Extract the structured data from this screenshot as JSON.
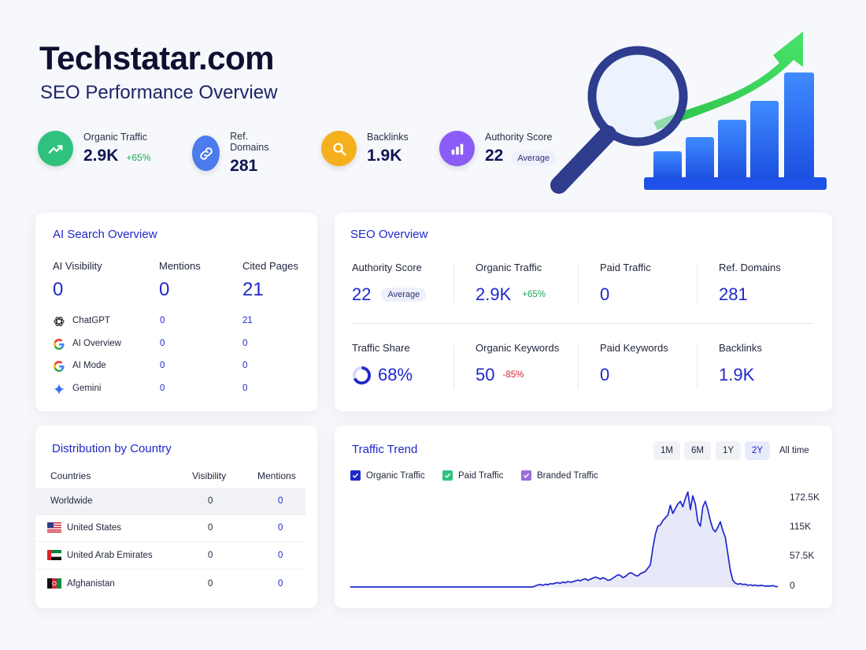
{
  "header": {
    "title": "Techstatar.com",
    "subtitle": "SEO Performance Overview"
  },
  "kpis": [
    {
      "label": "Organic Traffic",
      "value": "2.9K",
      "delta": "+65%",
      "icon": "trend-up-icon",
      "color": "#2ec27e"
    },
    {
      "label": "Ref. Domains",
      "value": "281",
      "icon": "link-icon",
      "color": "#4b7bec"
    },
    {
      "label": "Backlinks",
      "value": "1.9K",
      "icon": "search-icon",
      "color": "#f6b01e"
    },
    {
      "label": "Authority Score",
      "value": "22",
      "badge": "Average",
      "icon": "bar-chart-icon",
      "color": "#8b5cf6"
    }
  ],
  "ai_overview": {
    "title": "AI Search Overview",
    "columns": [
      {
        "label": "AI Visibility",
        "value": "0"
      },
      {
        "label": "Mentions",
        "value": "0"
      },
      {
        "label": "Cited Pages",
        "value": "21"
      }
    ],
    "engines": [
      {
        "name": "ChatGPT",
        "mentions": "0",
        "cited": "21",
        "icon": "chatgpt-icon"
      },
      {
        "name": "AI Overview",
        "mentions": "0",
        "cited": "0",
        "icon": "google-icon"
      },
      {
        "name": "AI Mode",
        "mentions": "0",
        "cited": "0",
        "icon": "google-icon"
      },
      {
        "name": "Gemini",
        "mentions": "0",
        "cited": "0",
        "icon": "gemini-icon"
      }
    ]
  },
  "seo_overview": {
    "title": "SEO Overview",
    "row1": [
      {
        "label": "Authority Score",
        "value": "22",
        "badge": "Average"
      },
      {
        "label": "Organic Traffic",
        "value": "2.9K",
        "delta": "+65%"
      },
      {
        "label": "Paid Traffic",
        "value": "0"
      },
      {
        "label": "Ref. Domains",
        "value": "281"
      }
    ],
    "row2": [
      {
        "label": "Traffic Share",
        "value": "68%",
        "share_fraction": 0.68
      },
      {
        "label": "Organic Keywords",
        "value": "50",
        "delta": "-85%"
      },
      {
        "label": "Paid Keywords",
        "value": "0"
      },
      {
        "label": "Backlinks",
        "value": "1.9K"
      }
    ]
  },
  "countries": {
    "title": "Distribution by Country",
    "headers": [
      "Countries",
      "Visibility",
      "Mentions"
    ],
    "rows": [
      {
        "name": "Worldwide",
        "visibility": "0",
        "mentions": "0",
        "flag": ""
      },
      {
        "name": "United States",
        "visibility": "0",
        "mentions": "0",
        "flag": "us-flag-icon"
      },
      {
        "name": "United Arab Emirates",
        "visibility": "0",
        "mentions": "0",
        "flag": "uae-flag-icon"
      },
      {
        "name": "Afghanistan",
        "visibility": "0",
        "mentions": "0",
        "flag": "af-flag-icon"
      }
    ]
  },
  "trend": {
    "title": "Traffic Trend",
    "ranges": [
      "1M",
      "6M",
      "1Y",
      "2Y",
      "All time"
    ],
    "active_range": "2Y",
    "legend": [
      {
        "label": "Organic Traffic",
        "color": "#1f28c9"
      },
      {
        "label": "Paid Traffic",
        "color": "#2ec27e"
      },
      {
        "label": "Branded Traffic",
        "color": "#9b6dd9"
      }
    ],
    "yticks": [
      "172.5K",
      "115K",
      "57.5K",
      "0"
    ]
  },
  "chart_data": {
    "type": "area",
    "title": "Traffic Trend",
    "ylim": [
      0,
      172500
    ],
    "series": [
      {
        "name": "Organic Traffic",
        "values": [
          0,
          0,
          0,
          0,
          0,
          0,
          0,
          0,
          0,
          0,
          0,
          0,
          0,
          0,
          0,
          0,
          0,
          0,
          0,
          0,
          0,
          0,
          0,
          0,
          0,
          0,
          0,
          0,
          0,
          0,
          0,
          0,
          0,
          0,
          0,
          0,
          0,
          0,
          0,
          0,
          0,
          0,
          0,
          0,
          0,
          0,
          0,
          0,
          0,
          0,
          0,
          0,
          0,
          0,
          0,
          0,
          0,
          0,
          0,
          0,
          0,
          0,
          0,
          0,
          0,
          0,
          0,
          0,
          0,
          0,
          0,
          0,
          0,
          0,
          2000,
          3500,
          4500,
          3000,
          5000,
          4000,
          6000,
          5500,
          7000,
          8000,
          6500,
          9000,
          7500,
          10000,
          8500,
          9500,
          11000,
          12500,
          11000,
          13500,
          15000,
          12000,
          14000,
          16000,
          18000,
          16500,
          14000,
          17000,
          15000,
          12000,
          13000,
          16000,
          19000,
          22000,
          21000,
          17000,
          19000,
          23000,
          26000,
          24000,
          21000,
          20000,
          24000,
          26000,
          28000,
          34000,
          40000,
          70000,
          95000,
          110000,
          112000,
          120000,
          125000,
          130000,
          148000,
          133000,
          142000,
          150000,
          155000,
          145000,
          160000,
          172000,
          140000,
          165000,
          150000,
          118000,
          110000,
          145000,
          155000,
          140000,
          120000,
          105000,
          100000,
          108000,
          118000,
          102000,
          90000,
          60000,
          30000,
          12000,
          7000,
          5000,
          6000,
          4500,
          5000,
          3000,
          4000,
          2500,
          3500,
          2000,
          3000,
          2500,
          1500,
          2000,
          1500,
          2500,
          1000,
          500
        ]
      }
    ]
  }
}
